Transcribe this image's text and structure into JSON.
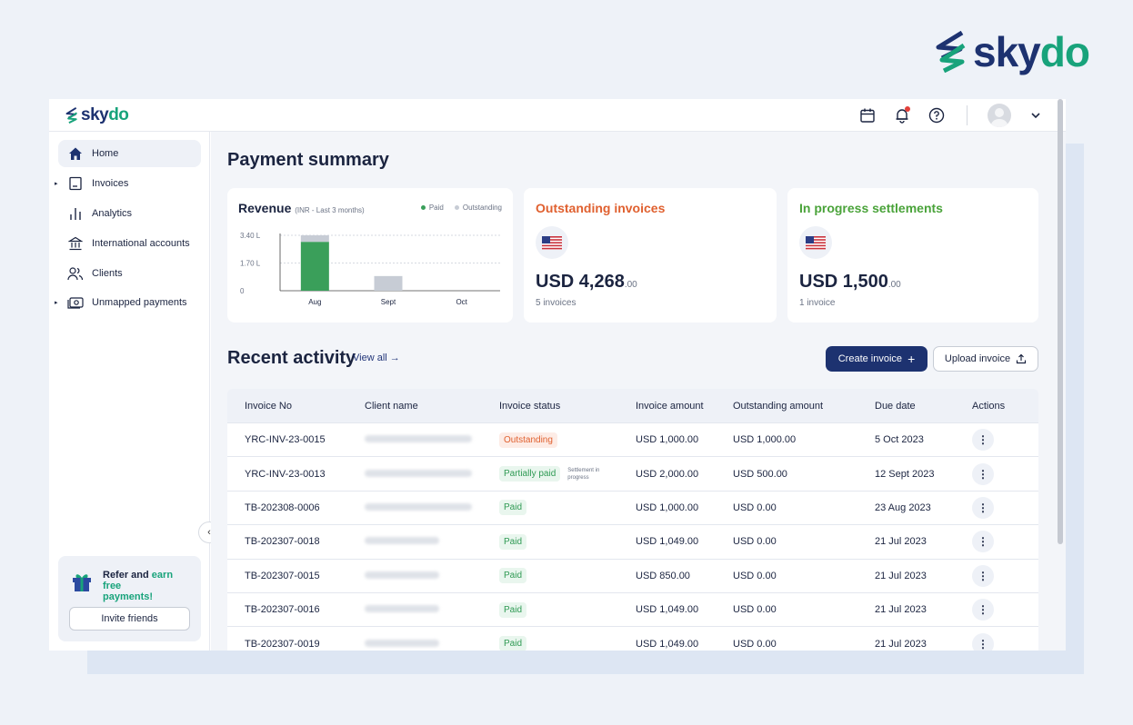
{
  "brand": {
    "prefix": "sky",
    "suffix": "do"
  },
  "colors": {
    "primary": "#1d3270",
    "accent_green": "#18a37b",
    "outstanding": "#e0602f",
    "progress": "#4aa33a"
  },
  "sidebar": {
    "items": [
      {
        "label": "Home",
        "icon": "home-icon",
        "active": true
      },
      {
        "label": "Invoices",
        "icon": "invoice-icon"
      },
      {
        "label": "Analytics",
        "icon": "analytics-icon"
      },
      {
        "label": "International accounts",
        "icon": "bank-icon"
      },
      {
        "label": "Clients",
        "icon": "clients-icon"
      },
      {
        "label": "Unmapped payments",
        "icon": "money-icon"
      }
    ],
    "refer": {
      "text_a": "Refer and ",
      "text_b": "earn free",
      "text_c": "payments!",
      "button": "Invite friends"
    }
  },
  "main": {
    "title": "Payment summary",
    "revenue": {
      "title": "Revenue",
      "subtitle": "(INR - Last 3 months)",
      "legend_paid": "Paid",
      "legend_outstanding": "Outstanding"
    },
    "outstanding": {
      "title": "Outstanding invoices",
      "amount": "USD 4,268",
      "decimals": ".00",
      "count": "5 invoices"
    },
    "progress": {
      "title": "In progress settlements",
      "amount": "USD 1,500",
      "decimals": ".00",
      "count": "1 invoice"
    },
    "recent": {
      "title": "Recent activity",
      "view_all": "View all",
      "create": "Create invoice",
      "upload": "Upload invoice"
    }
  },
  "chart_data": {
    "type": "bar",
    "categories": [
      "Aug",
      "Sept",
      "Oct"
    ],
    "y_ticks": [
      "0",
      "1.70 L",
      "3.40 L"
    ],
    "ylim": [
      0,
      3.4
    ],
    "series": [
      {
        "name": "Paid",
        "values": [
          3.0,
          0,
          0
        ]
      },
      {
        "name": "Outstanding",
        "values": [
          0.4,
          0.9,
          0
        ]
      }
    ]
  },
  "table": {
    "headers": [
      "Invoice No",
      "Client name",
      "Invoice status",
      "Invoice amount",
      "Outstanding amount",
      "Due date",
      "Actions"
    ],
    "rows": [
      {
        "no": "YRC-INV-23-0015",
        "status": "Outstanding",
        "kind": "out",
        "amount": "USD 1,000.00",
        "outstanding": "USD 1,000.00",
        "due": "5 Oct 2023"
      },
      {
        "no": "YRC-INV-23-0013",
        "status": "Partially paid",
        "kind": "part",
        "note": "Settlement in progress",
        "amount": "USD 2,000.00",
        "outstanding": "USD 500.00",
        "due": "12 Sept 2023"
      },
      {
        "no": "TB-202308-0006",
        "status": "Paid",
        "kind": "paid",
        "amount": "USD 1,000.00",
        "outstanding": "USD 0.00",
        "due": "23 Aug 2023"
      },
      {
        "no": "TB-202307-0018",
        "status": "Paid",
        "kind": "paid",
        "amount": "USD 1,049.00",
        "outstanding": "USD 0.00",
        "due": "21 Jul 2023"
      },
      {
        "no": "TB-202307-0015",
        "status": "Paid",
        "kind": "paid",
        "amount": "USD 850.00",
        "outstanding": "USD 0.00",
        "due": "21 Jul 2023"
      },
      {
        "no": "TB-202307-0016",
        "status": "Paid",
        "kind": "paid",
        "amount": "USD 1,049.00",
        "outstanding": "USD 0.00",
        "due": "21 Jul 2023"
      },
      {
        "no": "TB-202307-0019",
        "status": "Paid",
        "kind": "paid",
        "amount": "USD 1,049.00",
        "outstanding": "USD 0.00",
        "due": "21 Jul 2023"
      }
    ]
  }
}
